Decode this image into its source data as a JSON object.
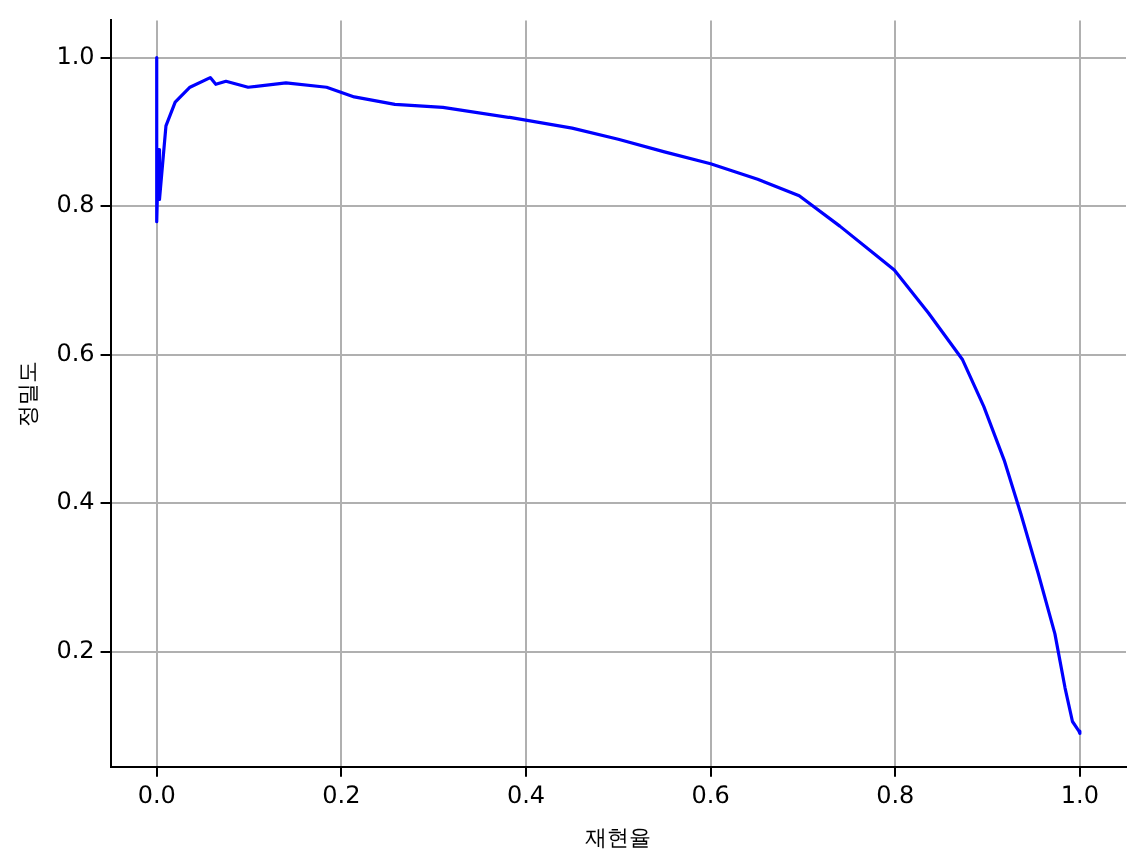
{
  "chart_data": {
    "type": "line",
    "xlabel": "재현율",
    "ylabel": "정밀도",
    "x": [
      0,
      0,
      0.002,
      0.003,
      0.01,
      0.02,
      0.036,
      0.058,
      0.064,
      0.075,
      0.099,
      0.14,
      0.184,
      0.214,
      0.258,
      0.31,
      0.384,
      0.45,
      0.5,
      0.55,
      0.6,
      0.651,
      0.696,
      0.74,
      0.799,
      0.836,
      0.873,
      0.896,
      0.918,
      0.936,
      0.955,
      0.973,
      0.984,
      0.992,
      0.999,
      1.0
    ],
    "series": [
      {
        "color": "#0000ff",
        "values": [
          1.0,
          0.779,
          0.876,
          0.809,
          0.908,
          0.94,
          0.96,
          0.973,
          0.964,
          0.968,
          0.96,
          0.966,
          0.96,
          0.947,
          0.937,
          0.933,
          0.919,
          0.905,
          0.89,
          0.873,
          0.857,
          0.836,
          0.814,
          0.773,
          0.714,
          0.656,
          0.593,
          0.53,
          0.458,
          0.386,
          0.305,
          0.224,
          0.151,
          0.106,
          0.093,
          0.09
        ]
      }
    ],
    "xlim": [
      -0.05,
      1.05
    ],
    "ylim": [
      0.045,
      1.05
    ],
    "xticks": [
      {
        "value": 0,
        "label": "0.0"
      },
      0.2,
      0.4,
      0.6,
      0.8,
      {
        "value": 1,
        "label": "1.0"
      }
    ],
    "yticks": [
      0.2,
      0.4,
      0.6,
      0.8,
      {
        "value": 1,
        "label": "1.0"
      }
    ],
    "grid": true,
    "legend": false,
    "marker": "none",
    "line_style": "solid"
  }
}
